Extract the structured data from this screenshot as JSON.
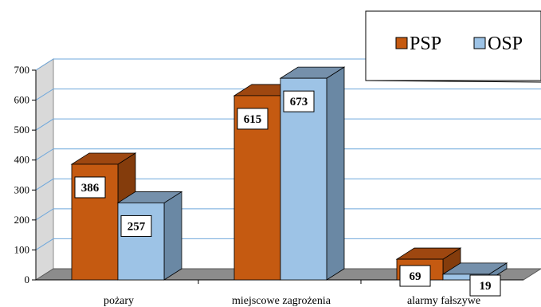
{
  "chart_data": {
    "type": "bar",
    "categories": [
      "pożary",
      "miejscowe zagrożenia",
      "alarmy fałszywe"
    ],
    "series": [
      {
        "name": "PSP",
        "values": [
          386,
          615,
          69
        ],
        "color": "#C55A11"
      },
      {
        "name": "OSP",
        "values": [
          257,
          673,
          19
        ],
        "color": "#9DC3E6"
      }
    ],
    "title": "",
    "xlabel": "",
    "ylabel": "",
    "ylim": [
      0,
      700
    ],
    "yticks": [
      0,
      100,
      200,
      300,
      400,
      500,
      600,
      700
    ],
    "grid": true,
    "legend_position": "top-right",
    "style": "3d-clustered-column"
  }
}
